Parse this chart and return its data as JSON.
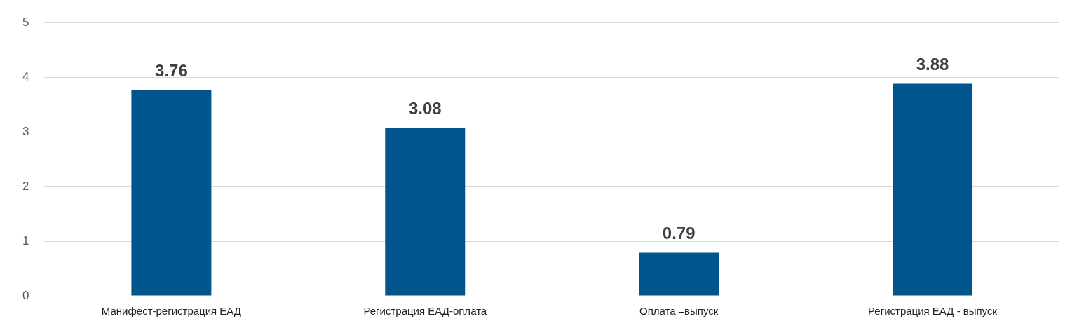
{
  "chart_data": {
    "type": "bar",
    "categories": [
      "Манифест-регистрация ЕАД",
      "Регистрация ЕАД-оплата",
      "Оплата –выпуск",
      "Регистрация ЕАД - выпуск"
    ],
    "values": [
      3.76,
      3.08,
      0.79,
      3.88
    ],
    "color": "#00568c",
    "ylim": [
      0,
      5
    ],
    "yticks": [
      0,
      1,
      2,
      3,
      4,
      5
    ],
    "grid": "y",
    "data_labels": true
  }
}
